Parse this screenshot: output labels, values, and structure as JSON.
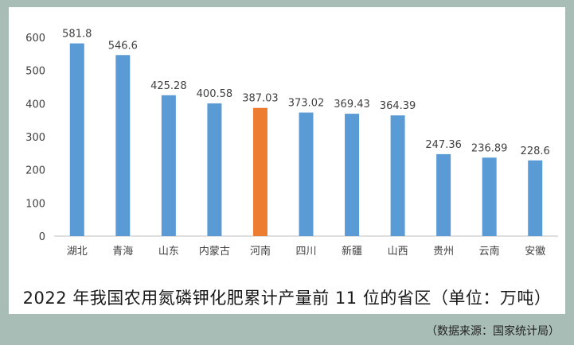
{
  "chart_data": {
    "type": "bar",
    "title": "2022 年我国农用氮磷钾化肥累计产量前 11 位的省区（单位：万吨）",
    "categories": [
      "湖北",
      "青海",
      "山东",
      "内蒙古",
      "河南",
      "四川",
      "新疆",
      "山西",
      "贵州",
      "云南",
      "安徽"
    ],
    "values": [
      581.8,
      546.6,
      425.28,
      400.58,
      387.03,
      373.02,
      369.43,
      364.39,
      247.36,
      236.89,
      228.6
    ],
    "value_labels": [
      "581.8",
      "546.6",
      "425.28",
      "400.58",
      "387.03",
      "373.02",
      "369.43",
      "364.39",
      "247.36",
      "236.89",
      "228.6"
    ],
    "highlight_category": "河南",
    "ylim": [
      0,
      600
    ],
    "yticks": [
      0,
      100,
      200,
      300,
      400,
      500,
      600
    ],
    "grid": false,
    "xlabel": "",
    "ylabel": "",
    "colors": {
      "bar": "#5b9bd5",
      "highlight": "#ed7d31",
      "axis": "#bfbfbf",
      "text": "#404040"
    }
  },
  "source_note": "（数据来源：国家统计局）"
}
